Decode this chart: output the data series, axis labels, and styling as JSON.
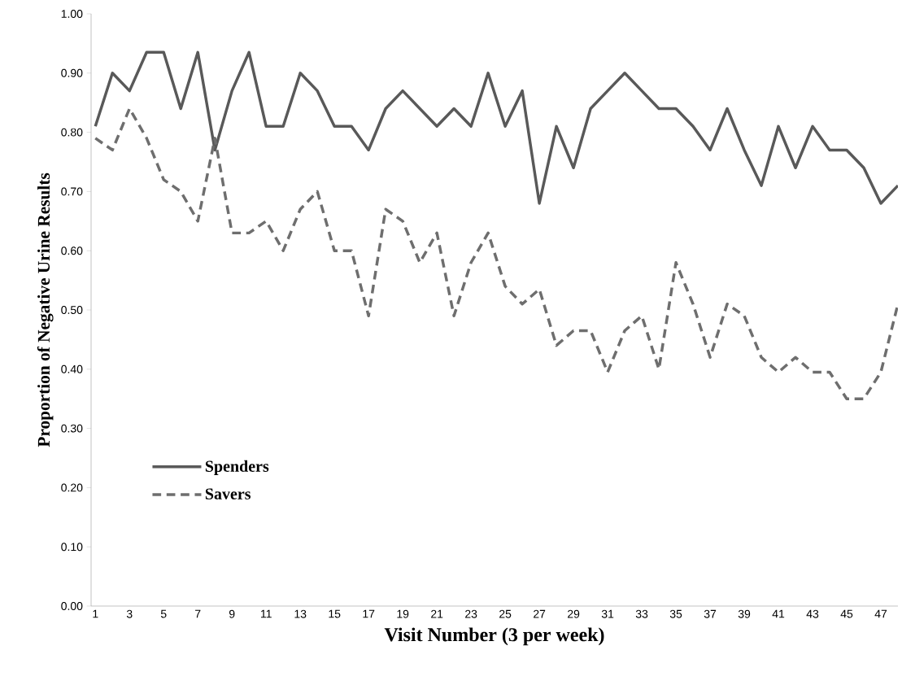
{
  "chart_data": {
    "type": "line",
    "xlabel": "Visit Number (3 per week)",
    "ylabel": "Proportion of Negative Urine Results",
    "categories": [
      "1",
      null,
      "3",
      null,
      "5",
      null,
      "7",
      null,
      "9",
      null,
      "11",
      null,
      "13",
      null,
      "15",
      null,
      "17",
      null,
      "19",
      null,
      "21",
      null,
      "23",
      null,
      "25",
      null,
      "27",
      null,
      "29",
      null,
      "31",
      null,
      "33",
      null,
      "35",
      null,
      "37",
      null,
      "39",
      null,
      "41",
      null,
      "43",
      null,
      "45",
      null,
      "47",
      null
    ],
    "series": [
      {
        "name": "Spenders",
        "color": "#595959",
        "line_style": "solid",
        "values": [
          0.81,
          0.9,
          0.87,
          0.935,
          0.935,
          0.84,
          0.935,
          0.77,
          0.87,
          0.935,
          0.81,
          0.81,
          0.9,
          0.87,
          0.81,
          0.81,
          0.77,
          0.84,
          0.87,
          0.84,
          0.81,
          0.84,
          0.81,
          0.9,
          0.81,
          0.87,
          0.68,
          0.81,
          0.74,
          0.84,
          0.87,
          0.9,
          0.87,
          0.84,
          0.84,
          0.81,
          0.77,
          0.84,
          0.77,
          0.71,
          0.81,
          0.74,
          0.81,
          0.77,
          0.77,
          0.74,
          0.68,
          0.71
        ]
      },
      {
        "name": "Savers",
        "color": "#6e6e6e",
        "line_style": "dashed",
        "values": [
          0.79,
          0.77,
          0.84,
          0.79,
          0.72,
          0.7,
          0.65,
          0.79,
          0.63,
          0.63,
          0.65,
          0.6,
          0.67,
          0.7,
          0.6,
          0.6,
          0.49,
          0.67,
          0.65,
          0.58,
          0.63,
          0.49,
          0.58,
          0.63,
          0.54,
          0.51,
          0.535,
          0.44,
          0.465,
          0.465,
          0.395,
          0.465,
          0.49,
          0.4,
          0.58,
          0.51,
          0.42,
          0.51,
          0.49,
          0.42,
          0.395,
          0.42,
          0.395,
          0.395,
          0.35,
          0.35,
          0.395,
          0.51
        ]
      }
    ],
    "ylim": [
      0,
      1
    ],
    "yticks": [
      {
        "value": 0,
        "label": "0.00"
      },
      {
        "value": 0.1,
        "label": "0.10"
      },
      {
        "value": 0.2,
        "label": "0.20"
      },
      {
        "value": 0.3,
        "label": "0.30"
      },
      {
        "value": 0.4,
        "label": "0.40"
      },
      {
        "value": 0.5,
        "label": "0.50"
      },
      {
        "value": 0.6,
        "label": "0.60"
      },
      {
        "value": 0.7,
        "label": "0.70"
      },
      {
        "value": 0.8,
        "label": "0.80"
      },
      {
        "value": 0.9,
        "label": "0.90"
      },
      {
        "value": 1,
        "label": "1.00"
      }
    ],
    "grid": false,
    "legend": "bottom left",
    "marker": "none"
  }
}
